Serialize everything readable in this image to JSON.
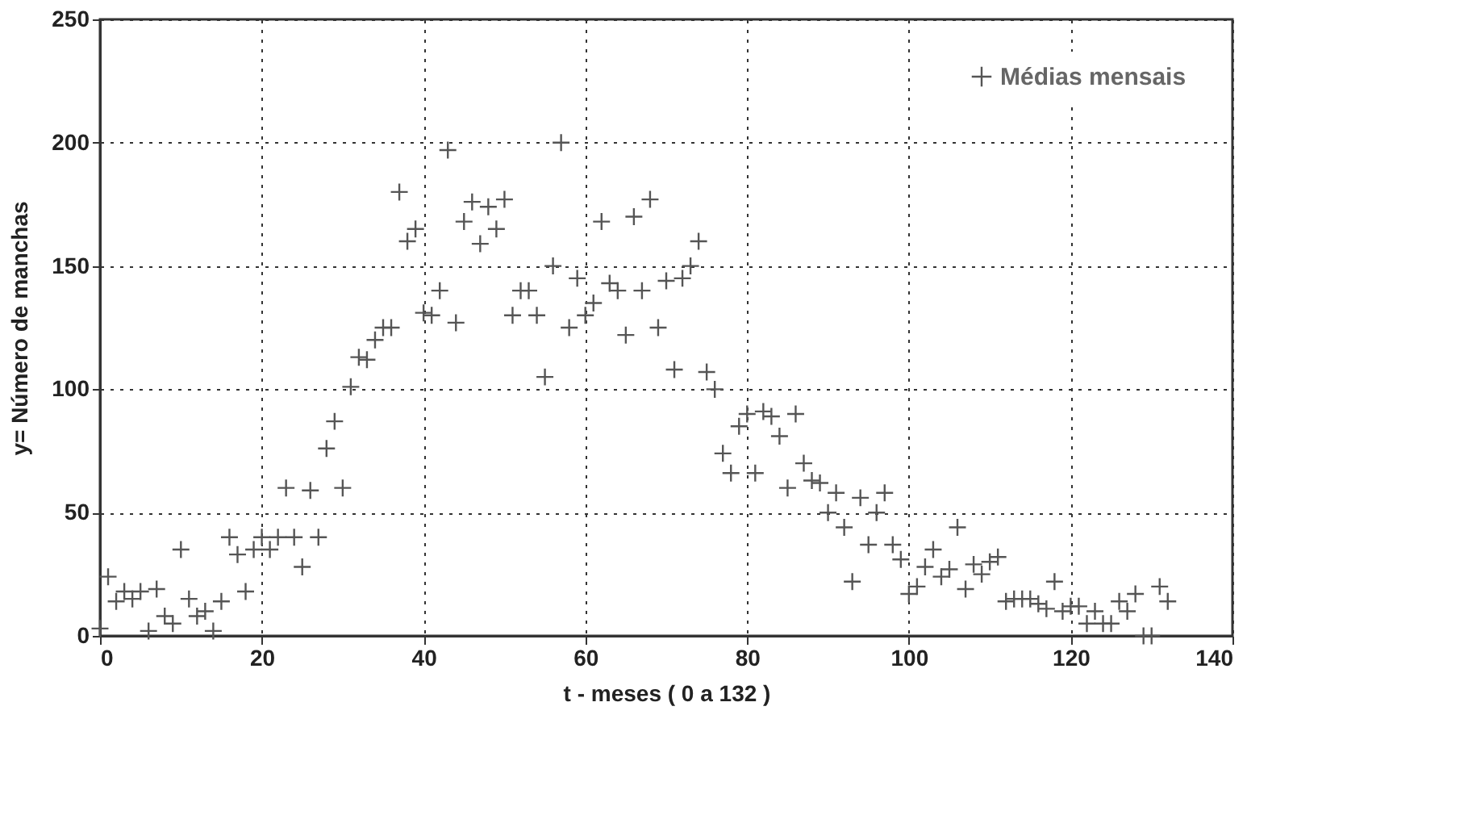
{
  "chart_data": {
    "type": "scatter",
    "xlabel": "t - meses ( 0 a 132 )",
    "ylabel": "y= Número de manchas",
    "xlim": [
      0,
      140
    ],
    "xticks": [
      0,
      20,
      40,
      60,
      80,
      100,
      120,
      140
    ],
    "ylim": [
      0,
      250
    ],
    "yticks": [
      0,
      50,
      100,
      150,
      200,
      250
    ],
    "grid": true,
    "legend": "top right",
    "marker": "cross",
    "x": [
      0,
      1,
      2,
      3,
      4,
      5,
      6,
      7,
      8,
      9,
      10,
      11,
      12,
      13,
      14,
      15,
      16,
      17,
      18,
      19,
      20,
      21,
      22,
      23,
      24,
      25,
      26,
      27,
      28,
      29,
      30,
      31,
      32,
      33,
      34,
      35,
      36,
      37,
      38,
      39,
      40,
      41,
      42,
      43,
      44,
      45,
      46,
      47,
      48,
      49,
      50,
      51,
      52,
      53,
      54,
      55,
      56,
      57,
      58,
      59,
      60,
      61,
      62,
      63,
      64,
      65,
      66,
      67,
      68,
      69,
      70,
      71,
      72,
      73,
      74,
      75,
      76,
      77,
      78,
      79,
      80,
      81,
      82,
      83,
      84,
      85,
      86,
      87,
      88,
      89,
      90,
      91,
      92,
      93,
      94,
      95,
      96,
      97,
      98,
      99,
      100,
      101,
      102,
      103,
      104,
      105,
      106,
      107,
      108,
      109,
      110,
      111,
      112,
      113,
      114,
      115,
      116,
      117,
      118,
      119,
      120,
      121,
      122,
      123,
      124,
      125,
      126,
      127,
      128,
      129,
      130,
      131,
      132
    ],
    "series": [
      {
        "name": "Médias mensais",
        "color": "#555555",
        "values": [
          3,
          24,
          14,
          18,
          15,
          18,
          2,
          19,
          8,
          5,
          35,
          15,
          8,
          10,
          2,
          14,
          40,
          33,
          18,
          35,
          40,
          35,
          40,
          60,
          40,
          28,
          59,
          40,
          76,
          87,
          60,
          101,
          113,
          112,
          120,
          125,
          125,
          180,
          160,
          165,
          131,
          130,
          140,
          197,
          127,
          168,
          176,
          159,
          174,
          165,
          177,
          130,
          140,
          140,
          130,
          105,
          150,
          200,
          125,
          145,
          130,
          135,
          168,
          143,
          140,
          122,
          170,
          140,
          177,
          125,
          144,
          108,
          145,
          150,
          160,
          107,
          100,
          74,
          66,
          85,
          90,
          66,
          91,
          89,
          81,
          60,
          90,
          70,
          63,
          62,
          50,
          58,
          44,
          22,
          56,
          37,
          50,
          58,
          37,
          31,
          17,
          20,
          28,
          35,
          24,
          27,
          44,
          19,
          29,
          25,
          30,
          32,
          14,
          15,
          15,
          15,
          13,
          11,
          22,
          10,
          12,
          12,
          5,
          10,
          5,
          5,
          14,
          10,
          17,
          0,
          0,
          20,
          14
        ]
      }
    ]
  }
}
